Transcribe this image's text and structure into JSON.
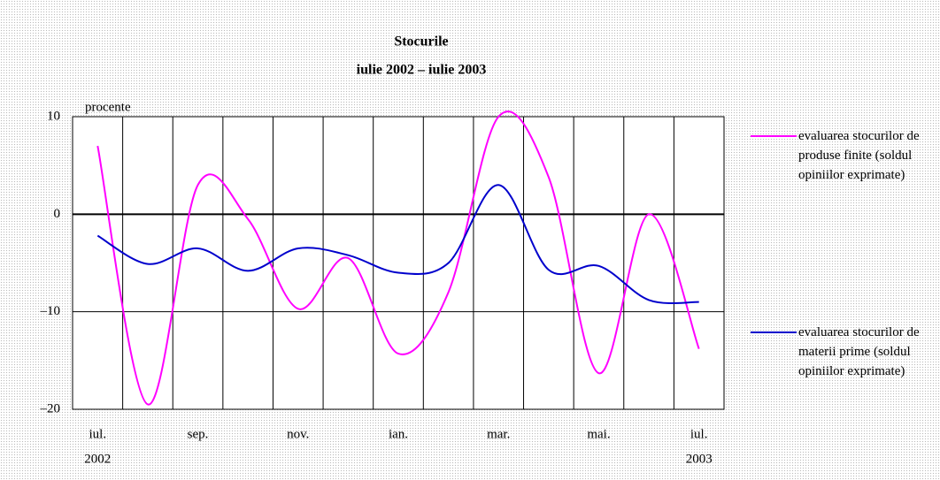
{
  "chart_data": {
    "type": "line",
    "title": "Stocurile",
    "subtitle": "iulie 2002 – iulie 2003",
    "y_label": "procente",
    "categories": [
      "iul.",
      null,
      "sep.",
      null,
      "nov.",
      null,
      "ian.",
      null,
      "mar.",
      null,
      "mai.",
      null,
      "iul."
    ],
    "x_sublabels": [
      "2002",
      null,
      null,
      null,
      null,
      null,
      null,
      null,
      null,
      null,
      null,
      null,
      "2003"
    ],
    "series": [
      {
        "name": "evaluarea stocurilor de produse finite (soldul opiniilor exprimate)",
        "color": "#ff00ff",
        "values": [
          7,
          -19.5,
          3,
          -0.5,
          -9.7,
          -4.5,
          -14.3,
          -8,
          10,
          3.8,
          -16.3,
          0,
          -13.8
        ]
      },
      {
        "name": "evaluarea stocurilor de materii prime (soldul opiniilor exprimate)",
        "color": "#0000cc",
        "values": [
          -2.2,
          -5.1,
          -3.5,
          -5.8,
          -3.5,
          -4.2,
          -6,
          -5,
          3,
          -5.7,
          -5.3,
          -8.8,
          -9
        ]
      }
    ],
    "ylim": [
      -20,
      10
    ],
    "yticks": [
      {
        "value": -20,
        "label": "–20"
      },
      {
        "value": -10,
        "label": "–10"
      },
      0,
      10
    ],
    "grid": true
  }
}
